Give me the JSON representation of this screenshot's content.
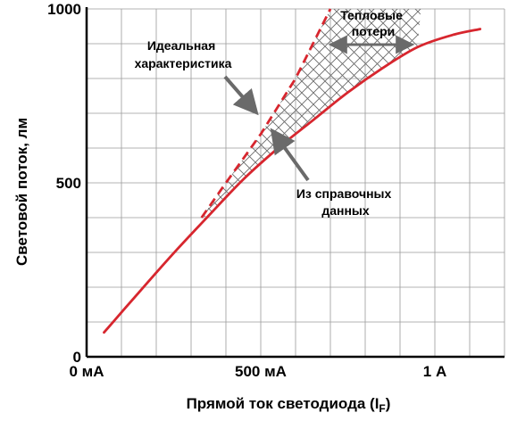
{
  "chart_data": {
    "type": "line",
    "xlabel_main": "Прямой ток светодиода (I",
    "xlabel_sub": "F",
    "xlabel_close": ")",
    "ylabel": "Световой поток, лм",
    "xlim": [
      0,
      1200
    ],
    "ylim": [
      0,
      1000
    ],
    "x_ticks": [
      {
        "value": 0,
        "label": "0 мА"
      },
      {
        "value": 500,
        "label": "500 мА"
      },
      {
        "value": 1000,
        "label": "1 А"
      }
    ],
    "y_ticks": [
      {
        "value": 0,
        "label": "0"
      },
      {
        "value": 500,
        "label": "500"
      },
      {
        "value": 1000,
        "label": "1000"
      }
    ],
    "grid": true,
    "series": [
      {
        "key": "datasheet",
        "color": "#d7262e",
        "style": "solid",
        "x": [
          50,
          150,
          250,
          350,
          450,
          550,
          650,
          750,
          850,
          950,
          1050,
          1130
        ],
        "y": [
          70,
          185,
          298,
          405,
          510,
          600,
          680,
          760,
          830,
          890,
          925,
          942
        ]
      },
      {
        "key": "ideal",
        "color": "#d7262e",
        "style": "dashed",
        "x": [
          330,
          400,
          500,
          600,
          700
        ],
        "y": [
          400,
          500,
          640,
          800,
          1000
        ]
      }
    ],
    "annotations": [
      {
        "key": "ideal_label",
        "lines": [
          "Идеальная",
          "характеристика"
        ]
      },
      {
        "key": "heat_label",
        "lines": [
          "Тепловые",
          "потери"
        ]
      },
      {
        "key": "datasheet_label",
        "lines": [
          "Из справочных",
          "данных"
        ]
      }
    ]
  }
}
